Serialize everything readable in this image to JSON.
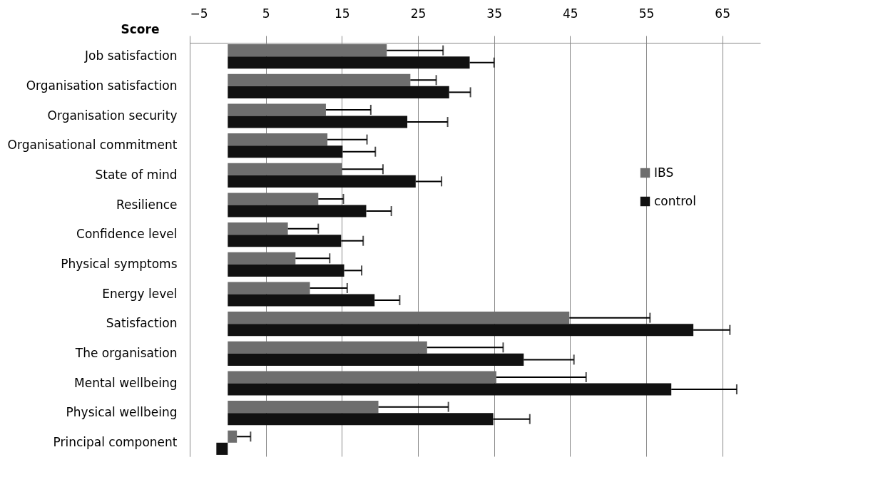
{
  "chart_data": {
    "type": "bar",
    "orientation": "horizontal",
    "xlabel": "Score",
    "categories": [
      "Job satisfaction",
      "Organisation satisfaction",
      "Organisation security",
      "Organisational commitment",
      "State of mind",
      "Resilience",
      "Confidence level",
      "Physical symptoms",
      "Energy level",
      "Satisfaction",
      "The organisation",
      "Mental wellbeing",
      "Physical wellbeing",
      "Principal component"
    ],
    "series": [
      {
        "name": "IBS",
        "color": "#6e6e6e",
        "values": [
          20.9,
          24.0,
          12.9,
          13.1,
          15.0,
          11.9,
          7.9,
          8.9,
          10.8,
          44.9,
          26.2,
          35.3,
          19.8,
          1.2
        ],
        "errors": [
          [
            20.9,
            28.3
          ],
          [
            24.0,
            27.4
          ],
          [
            12.9,
            18.8
          ],
          [
            13.1,
            18.3
          ],
          [
            15.0,
            20.4
          ],
          [
            11.9,
            15.2
          ],
          [
            7.9,
            11.9
          ],
          [
            8.9,
            13.4
          ],
          [
            10.8,
            15.7
          ],
          [
            44.9,
            55.5
          ],
          [
            26.2,
            36.2
          ],
          [
            35.3,
            47.1
          ],
          [
            19.8,
            29.0
          ],
          [
            1.2,
            3.0
          ]
        ]
      },
      {
        "name": "control",
        "color": "#111111",
        "values": [
          31.8,
          29.1,
          23.6,
          15.1,
          24.7,
          18.2,
          14.9,
          15.3,
          19.3,
          61.2,
          38.9,
          58.3,
          34.9,
          -1.5
        ],
        "errors": [
          [
            31.8,
            35.0
          ],
          [
            29.1,
            31.9
          ],
          [
            23.6,
            28.9
          ],
          [
            15.1,
            19.4
          ],
          [
            24.7,
            28.1
          ],
          [
            18.2,
            21.5
          ],
          [
            14.9,
            17.8
          ],
          [
            15.3,
            17.6
          ],
          [
            19.3,
            22.6
          ],
          [
            61.2,
            66.0
          ],
          [
            38.9,
            45.5
          ],
          [
            58.3,
            66.9
          ],
          [
            34.9,
            39.7
          ],
          null
        ]
      }
    ],
    "xlim": [
      -5,
      70
    ],
    "xticks": [
      -5,
      5,
      15,
      25,
      35,
      45,
      55,
      65
    ],
    "grid": "x",
    "legend": "right"
  }
}
